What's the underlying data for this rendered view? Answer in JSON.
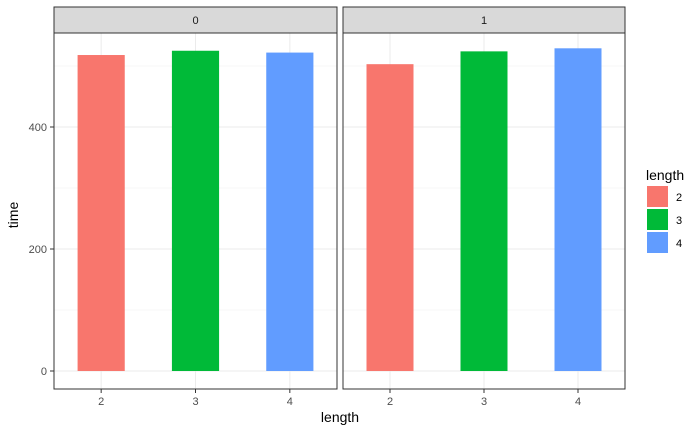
{
  "chart_data": {
    "type": "bar",
    "xlabel": "length",
    "ylabel": "time",
    "ylim": [
      0,
      560
    ],
    "yticks": [
      0,
      200,
      400
    ],
    "categories": [
      "2",
      "3",
      "4"
    ],
    "facets": [
      {
        "strip": "0",
        "values": [
          518,
          525,
          522
        ]
      },
      {
        "strip": "1",
        "values": [
          503,
          524,
          529
        ]
      }
    ],
    "legend": {
      "title": "length",
      "position": "right",
      "items": [
        {
          "label": "2",
          "color": "#F8766D"
        },
        {
          "label": "3",
          "color": "#00BA38"
        },
        {
          "label": "4",
          "color": "#619CFF"
        }
      ]
    },
    "grid": true,
    "theme": "bw"
  }
}
